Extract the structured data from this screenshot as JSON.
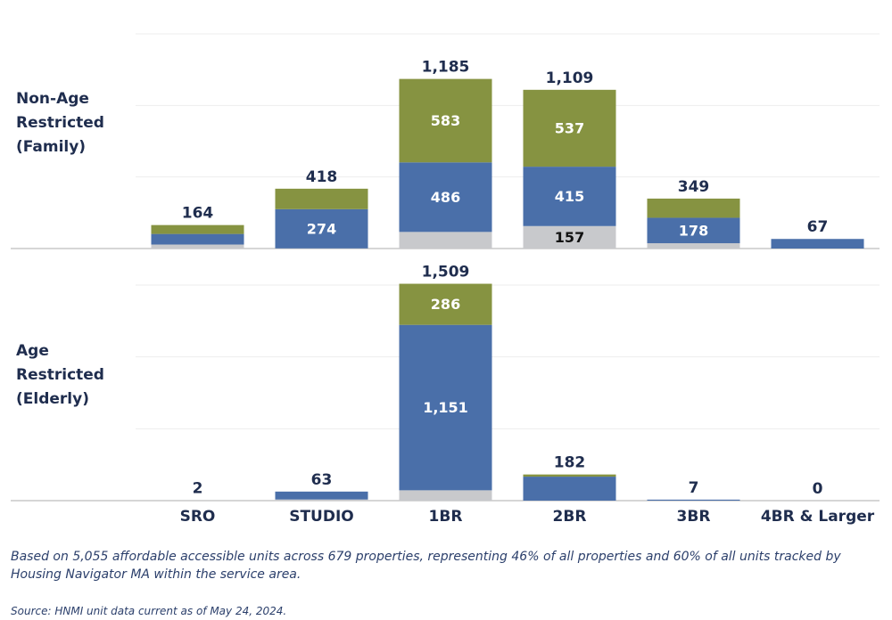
{
  "chart_data": [
    {
      "type": "stacked_bar",
      "title": "Non-Age Restricted (Family)",
      "ylim": [
        0,
        1500
      ],
      "yticks": [
        0,
        500,
        1000,
        1500
      ],
      "grid": true,
      "series": [
        {
          "color": "#c8c9cc",
          "values": [
            28,
            1,
            116,
            157,
            37,
            0
          ],
          "value_labels": [
            null,
            null,
            null,
            "157",
            null,
            null
          ],
          "label_color": "#111111"
        },
        {
          "color": "#4a6fa9",
          "values": [
            74,
            274,
            486,
            415,
            178,
            67
          ],
          "value_labels": [
            null,
            "274",
            "486",
            "415",
            "178",
            null
          ],
          "label_color": "#ffffff"
        },
        {
          "color": "#869341",
          "values": [
            62,
            143,
            583,
            537,
            134,
            0
          ],
          "value_labels": [
            null,
            null,
            "583",
            "537",
            null,
            null
          ],
          "label_color": "#ffffff"
        }
      ],
      "totals": [
        164,
        418,
        1185,
        1109,
        349,
        67
      ],
      "total_labels": [
        "164",
        "418",
        "1,185",
        "1,109",
        "349",
        "67"
      ]
    },
    {
      "type": "stacked_bar",
      "title": "Age Restricted (Elderly)",
      "categories": [
        "SRO",
        "STUDIO",
        "1BR",
        "2BR",
        "3BR",
        "4BR & Larger"
      ],
      "ylim": [
        0,
        1500
      ],
      "yticks": [
        0,
        500,
        1000,
        1500
      ],
      "grid": true,
      "series": [
        {
          "color": "#c8c9cc",
          "values": [
            2,
            8,
            72,
            0,
            0,
            0
          ],
          "value_labels": [
            null,
            null,
            null,
            null,
            null,
            null
          ],
          "label_color": "#111111"
        },
        {
          "color": "#4a6fa9",
          "values": [
            0,
            55,
            1151,
            167,
            7,
            0
          ],
          "value_labels": [
            null,
            null,
            "1,151",
            null,
            null,
            null
          ],
          "label_color": "#ffffff"
        },
        {
          "color": "#869341",
          "values": [
            0,
            0,
            286,
            15,
            0,
            0
          ],
          "value_labels": [
            null,
            null,
            "286",
            null,
            null,
            null
          ],
          "label_color": "#ffffff"
        }
      ],
      "totals": [
        2,
        63,
        1509,
        182,
        7,
        0
      ],
      "total_labels": [
        "2",
        "63",
        "1,509",
        "182",
        "7",
        "0"
      ]
    }
  ],
  "footnote": "Based on 5,055 affordable accessible units across 679 properties, representing 46% of all properties and 60% of all units tracked by Housing Navigator MA within the service area.",
  "source": "Source: HNMI unit data current as of May 24, 2024."
}
